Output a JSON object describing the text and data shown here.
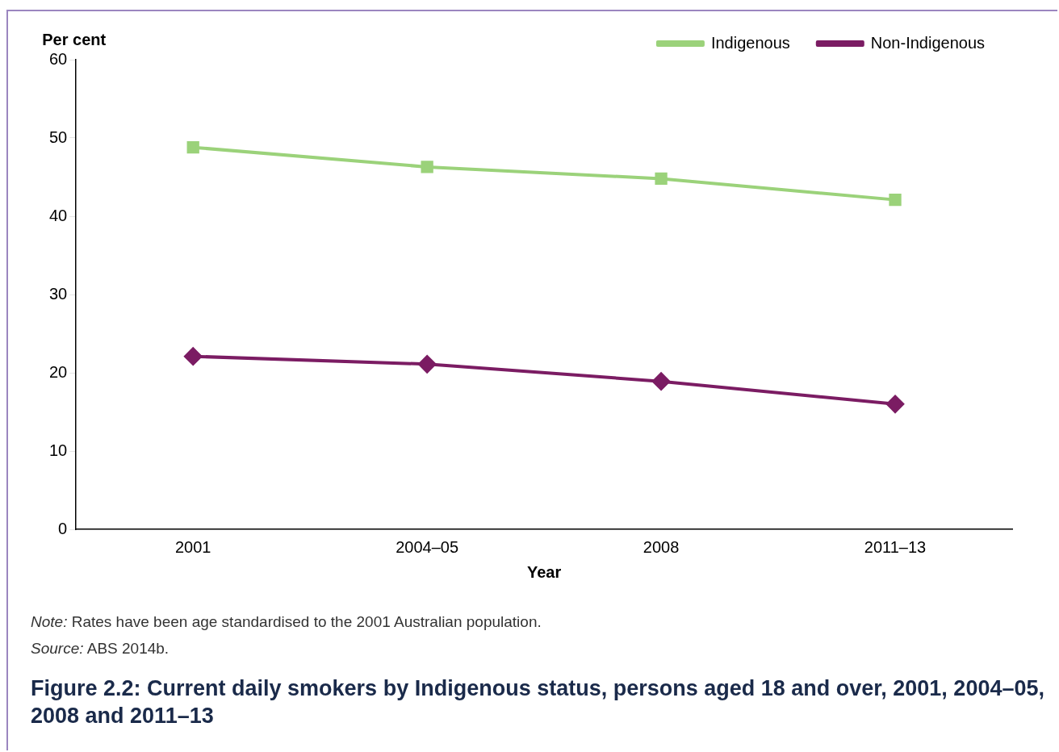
{
  "chart_data": {
    "type": "line",
    "title": "Figure 2.2: Current daily smokers by Indigenous status, persons aged 18 and over, 2001, 2004–05, 2008 and 2011–13",
    "ylabel": "Per cent",
    "xlabel": "Year",
    "categories": [
      "2001",
      "2004–05",
      "2008",
      "2011–13"
    ],
    "series": [
      {
        "name": "Indigenous",
        "color": "#9bd27a",
        "marker": "square",
        "values": [
          48.8,
          46.3,
          44.8,
          42.1
        ]
      },
      {
        "name": "Non-Indigenous",
        "color": "#7b1c63",
        "marker": "diamond",
        "values": [
          22.1,
          21.1,
          18.9,
          16.0
        ]
      }
    ],
    "ylim": [
      0,
      60
    ],
    "yticks": [
      0,
      10,
      20,
      30,
      40,
      50,
      60
    ],
    "grid": false,
    "legend": "top right",
    "annotations": [
      "Note: Rates have been age standardised to the 2001 Australian population.",
      "Source: ABS 2014b."
    ]
  }
}
